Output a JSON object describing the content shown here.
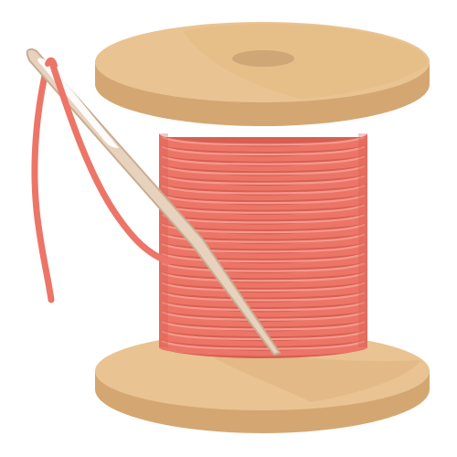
{
  "illustration": {
    "subject": "spool-of-thread-with-needle-icon",
    "colors": {
      "background": "#ffffff",
      "wood_light": "#e9c391",
      "wood_mid": "#dcae74",
      "wood_dark": "#caa06a",
      "wood_hole": "#cfa676",
      "thread_base": "#ec7567",
      "thread_highlight": "#f49a8d",
      "thread_shadow": "#d65f52",
      "needle_fill": "#e7d3bd",
      "needle_outline": "#c9ad91",
      "needle_eye": "#ffffff"
    },
    "thread_windings": 22
  }
}
